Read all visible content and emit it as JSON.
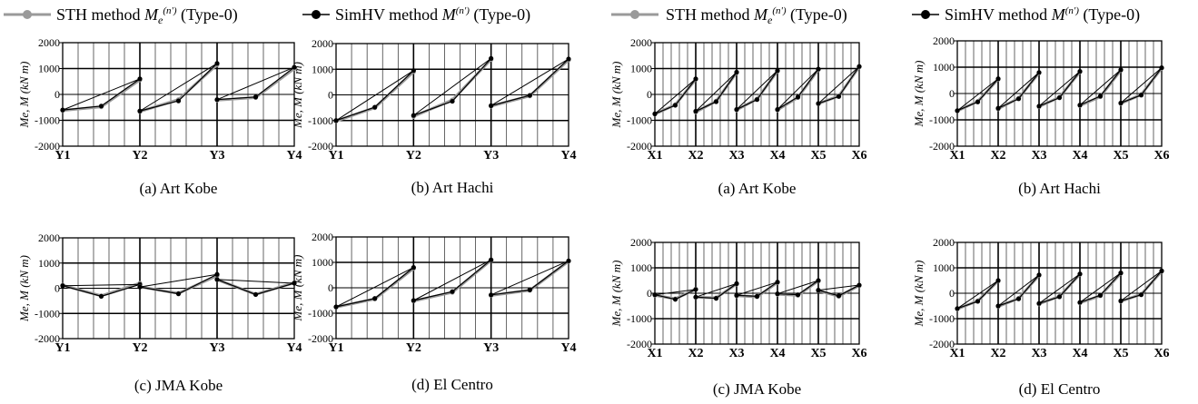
{
  "legends": [
    {
      "items": [
        {
          "symbol": "sth",
          "text": "STH method ",
          "sym": "M",
          "sub": "e",
          "sup": "(n')",
          "tail": " (Type-0)"
        },
        {
          "symbol": "simhv",
          "text": "SimHV method ",
          "sym": "M",
          "sub": "",
          "sup": "(n')",
          "tail": " (Type-0)"
        }
      ]
    },
    {
      "items": [
        {
          "symbol": "sth",
          "text": "STH method ",
          "sym": "M",
          "sub": "e",
          "sup": "(n')",
          "tail": " (Type-0)"
        },
        {
          "symbol": "simhv",
          "text": "SimHV method ",
          "sym": "M",
          "sub": "",
          "sup": "(n')",
          "tail": " (Type-0)"
        }
      ]
    }
  ],
  "colors": {
    "sth": "#9a9a9a",
    "simhv": "#000000",
    "axis": "#000000"
  },
  "chart_data": [
    {
      "type": "line",
      "caption": "(a) Art Kobe",
      "ylabel": "Me, M (kN m)",
      "ylim": [
        -2000,
        2000
      ],
      "yticks": [
        2000,
        1000,
        0,
        -1000,
        -2000
      ],
      "xlabels": [
        "Y1",
        "Y2",
        "Y3",
        "Y4"
      ],
      "members": [
        {
          "sth": [
            -620,
            -480,
            560
          ],
          "simhv": [
            -600,
            -450,
            600
          ]
        },
        {
          "sth": [
            -660,
            -200,
            1150
          ],
          "simhv": [
            -640,
            -250,
            1200
          ]
        },
        {
          "sth": [
            -220,
            -120,
            1000
          ],
          "simhv": [
            -200,
            -100,
            1050
          ]
        }
      ]
    },
    {
      "type": "line",
      "caption": "(b) Art Hachi",
      "ylabel": "Me, M (kN m)",
      "ylim": [
        -2000,
        2000
      ],
      "yticks": [
        2000,
        1000,
        0,
        -1000,
        -2000
      ],
      "xlabels": [
        "Y1",
        "Y2",
        "Y3",
        "Y4"
      ],
      "members": [
        {
          "sth": [
            -1020,
            -500,
            900
          ],
          "simhv": [
            -1000,
            -480,
            950
          ]
        },
        {
          "sth": [
            -840,
            -200,
            1380
          ],
          "simhv": [
            -800,
            -250,
            1420
          ]
        },
        {
          "sth": [
            -440,
            -40,
            1360
          ],
          "simhv": [
            -420,
            -20,
            1400
          ]
        }
      ]
    },
    {
      "type": "line",
      "caption": "(a) Art Kobe",
      "ylabel": "Me, M (kN m)",
      "ylim": [
        -2000,
        2000
      ],
      "yticks": [
        2000,
        1000,
        0,
        -1000,
        -2000
      ],
      "xlabels": [
        "X1",
        "X2",
        "X3",
        "X4",
        "X5",
        "X6"
      ],
      "members": [
        {
          "sth": [
            -760,
            -400,
            580
          ],
          "simhv": [
            -750,
            -420,
            600
          ]
        },
        {
          "sth": [
            -680,
            -260,
            840
          ],
          "simhv": [
            -650,
            -280,
            860
          ]
        },
        {
          "sth": [
            -600,
            -180,
            900
          ],
          "simhv": [
            -580,
            -200,
            920
          ]
        },
        {
          "sth": [
            -600,
            -120,
            960
          ],
          "simhv": [
            -580,
            -100,
            980
          ]
        },
        {
          "sth": [
            -360,
            -60,
            1060
          ],
          "simhv": [
            -350,
            -80,
            1080
          ]
        }
      ]
    },
    {
      "type": "line",
      "caption": "(b) Art Hachi",
      "ylabel": "Me, M (kN m)",
      "ylim": [
        -2000,
        2000
      ],
      "yticks": [
        2000,
        1000,
        0,
        -1000,
        -2000
      ],
      "xlabels": [
        "X1",
        "X2",
        "X3",
        "X4",
        "X5",
        "X6"
      ],
      "members": [
        {
          "sth": [
            -660,
            -300,
            540
          ],
          "simhv": [
            -650,
            -320,
            560
          ]
        },
        {
          "sth": [
            -580,
            -180,
            780
          ],
          "simhv": [
            -560,
            -200,
            800
          ]
        },
        {
          "sth": [
            -500,
            -140,
            820
          ],
          "simhv": [
            -480,
            -160,
            840
          ]
        },
        {
          "sth": [
            -460,
            -120,
            880
          ],
          "simhv": [
            -440,
            -100,
            900
          ]
        },
        {
          "sth": [
            -380,
            -40,
            960
          ],
          "simhv": [
            -360,
            -60,
            980
          ]
        }
      ]
    },
    {
      "type": "line",
      "caption": "(c) JMA Kobe",
      "ylabel": "Me, M (kN m)",
      "ylim": [
        -2000,
        2000
      ],
      "yticks": [
        2000,
        1000,
        0,
        -1000,
        -2000
      ],
      "xlabels": [
        "Y1",
        "Y2",
        "Y3",
        "Y4"
      ],
      "members": [
        {
          "sth": [
            120,
            -300,
            200
          ],
          "simhv": [
            100,
            -320,
            150
          ]
        },
        {
          "sth": [
            60,
            -200,
            500
          ],
          "simhv": [
            50,
            -220,
            550
          ]
        },
        {
          "sth": [
            340,
            -240,
            220
          ],
          "simhv": [
            350,
            -250,
            200
          ]
        }
      ]
    },
    {
      "type": "line",
      "caption": "(d) El Centro",
      "ylabel": "Me, M (kN m)",
      "ylim": [
        -2000,
        2000
      ],
      "yticks": [
        2000,
        1000,
        0,
        -1000,
        -2000
      ],
      "xlabels": [
        "Y1",
        "Y2",
        "Y3",
        "Y4"
      ],
      "members": [
        {
          "sth": [
            -760,
            -440,
            760
          ],
          "simhv": [
            -750,
            -420,
            800
          ]
        },
        {
          "sth": [
            -520,
            -180,
            1080
          ],
          "simhv": [
            -500,
            -150,
            1100
          ]
        },
        {
          "sth": [
            -300,
            -100,
            1040
          ],
          "simhv": [
            -280,
            -80,
            1060
          ]
        }
      ]
    },
    {
      "type": "line",
      "caption": "(c) JMA Kobe",
      "ylabel": "Me, M (kN m)",
      "ylim": [
        -2000,
        2000
      ],
      "yticks": [
        2000,
        1000,
        0,
        -1000,
        -2000
      ],
      "xlabels": [
        "X1",
        "X2",
        "X3",
        "X4",
        "X5",
        "X6"
      ],
      "members": [
        {
          "sth": [
            -80,
            -220,
            160
          ],
          "simhv": [
            -60,
            -240,
            150
          ]
        },
        {
          "sth": [
            -160,
            -180,
            360
          ],
          "simhv": [
            -150,
            -200,
            380
          ]
        },
        {
          "sth": [
            -100,
            -140,
            420
          ],
          "simhv": [
            -80,
            -120,
            440
          ]
        },
        {
          "sth": [
            -40,
            -80,
            480
          ],
          "simhv": [
            -20,
            -60,
            500
          ]
        },
        {
          "sth": [
            100,
            -120,
            300
          ],
          "simhv": [
            120,
            -100,
            320
          ]
        }
      ]
    },
    {
      "type": "line",
      "caption": "(d) El Centro",
      "ylabel": "Me, M (kN m)",
      "ylim": [
        -2000,
        2000
      ],
      "yticks": [
        2000,
        1000,
        0,
        -1000,
        -2000
      ],
      "xlabels": [
        "X1",
        "X2",
        "X3",
        "X4",
        "X5",
        "X6"
      ],
      "members": [
        {
          "sth": [
            -620,
            -300,
            480
          ],
          "simhv": [
            -600,
            -320,
            500
          ]
        },
        {
          "sth": [
            -520,
            -200,
            700
          ],
          "simhv": [
            -500,
            -220,
            720
          ]
        },
        {
          "sth": [
            -420,
            -120,
            740
          ],
          "simhv": [
            -400,
            -140,
            760
          ]
        },
        {
          "sth": [
            -380,
            -100,
            780
          ],
          "simhv": [
            -360,
            -80,
            800
          ]
        },
        {
          "sth": [
            -320,
            -40,
            860
          ],
          "simhv": [
            -300,
            -60,
            880
          ]
        }
      ]
    }
  ]
}
